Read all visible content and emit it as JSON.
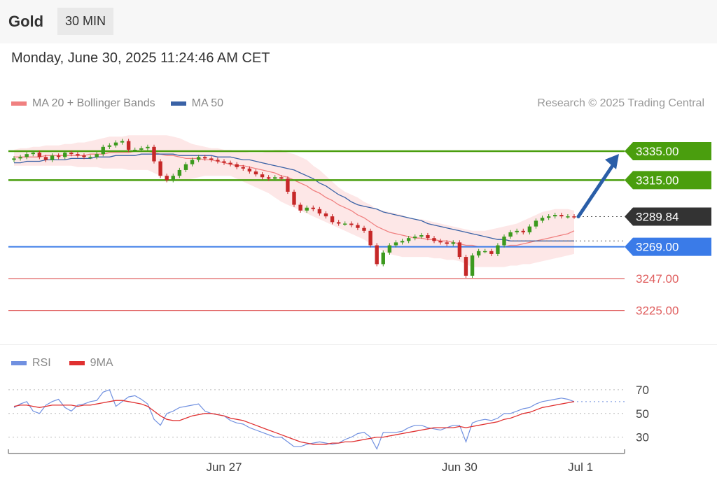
{
  "header": {
    "title": "Gold",
    "interval": "30 MIN"
  },
  "timestamp": "Monday, June 30, 2025 11:24:46 AM CET",
  "legend": {
    "ma20": "MA 20 + Bollinger Bands",
    "ma50": "MA 50"
  },
  "credit": "Research © 2025 Trading Central",
  "rsi_legend": {
    "rsi": "RSI",
    "ma": "9MA"
  },
  "colors": {
    "resistance": "#4a9e0e",
    "support": "#3a7be8",
    "minor_support": "#e06060",
    "last": "#333333",
    "up": "#3c9a1e",
    "down": "#c62828",
    "ma20": "#f08080",
    "ma50": "#3a62a6",
    "band": "#fde3e3",
    "rsi": "#7090e0",
    "rsi_ma": "#e03030",
    "arrow": "#2a5ea8"
  },
  "chart_data": [
    {
      "type": "candlestick",
      "title": "Gold",
      "interval": "30 MIN",
      "ylim": [
        3205,
        3350
      ],
      "x_labels": [
        {
          "label": "Jun 27",
          "index": 33
        },
        {
          "label": "Jun 30",
          "index": 70
        },
        {
          "label": "Jul 1",
          "index": 89
        }
      ],
      "levels": [
        {
          "label": "3335.00",
          "value": 3335.0,
          "kind": "resistance"
        },
        {
          "label": "3315.00",
          "value": 3315.0,
          "kind": "resistance"
        },
        {
          "label": "3289.84",
          "value": 3289.84,
          "kind": "last"
        },
        {
          "label": "3269.00",
          "value": 3269.0,
          "kind": "support"
        },
        {
          "label": "3247.00",
          "value": 3247.0,
          "kind": "minor_support"
        },
        {
          "label": "3225.00",
          "value": 3225.0,
          "kind": "minor_support"
        }
      ],
      "close": [
        3330,
        3331,
        3333,
        3334,
        3331,
        3329,
        3332,
        3331,
        3334,
        3333,
        3332,
        3331,
        3331,
        3333,
        3338,
        3339,
        3341,
        3342,
        3336,
        3336,
        3337,
        3338,
        3328,
        3318,
        3315,
        3318,
        3322,
        3326,
        3329,
        3331,
        3330,
        3329,
        3328,
        3327,
        3326,
        3324,
        3323,
        3321,
        3319,
        3317,
        3316,
        3317,
        3316,
        3307,
        3298,
        3294,
        3296,
        3295,
        3292,
        3290,
        3286,
        3285,
        3285,
        3284,
        3282,
        3280,
        3270,
        3257,
        3265,
        3270,
        3272,
        3273,
        3275,
        3276,
        3277,
        3275,
        3273,
        3272,
        3271,
        3272,
        3262,
        3249,
        3263,
        3266,
        3266,
        3264,
        3270,
        3276,
        3279,
        3280,
        3279,
        3283,
        3287,
        3289,
        3290,
        3291,
        3290,
        3290,
        3289.84
      ],
      "ma20": [
        3331,
        3331,
        3331,
        3331,
        3331,
        3332,
        3332,
        3332,
        3332,
        3332,
        3332,
        3332,
        3333,
        3333,
        3333,
        3334,
        3334,
        3334,
        3334,
        3335,
        3335,
        3335,
        3334,
        3333,
        3332,
        3332,
        3331,
        3330,
        3330,
        3330,
        3329,
        3329,
        3328,
        3327,
        3326,
        3325,
        3325,
        3324,
        3323,
        3322,
        3321,
        3320,
        3318,
        3317,
        3315,
        3313,
        3311,
        3308,
        3306,
        3303,
        3301,
        3298,
        3296,
        3294,
        3291,
        3289,
        3286,
        3283,
        3281,
        3279,
        3278,
        3277,
        3276,
        3275,
        3275,
        3274,
        3274,
        3273,
        3273,
        3272,
        3271,
        3270,
        3270,
        3269,
        3269,
        3269,
        3269,
        3269,
        3270,
        3270,
        3271,
        3272,
        3273,
        3274,
        3275,
        3276,
        3277,
        3278,
        3280
      ],
      "bb_upper": [
        3336,
        3337,
        3337,
        3338,
        3338,
        3339,
        3339,
        3339,
        3340,
        3340,
        3341,
        3341,
        3342,
        3343,
        3344,
        3345,
        3345,
        3345,
        3346,
        3346,
        3346,
        3346,
        3346,
        3346,
        3346,
        3345,
        3344,
        3342,
        3340,
        3339,
        3338,
        3337,
        3337,
        3336,
        3336,
        3335,
        3335,
        3334,
        3334,
        3334,
        3335,
        3336,
        3336,
        3334,
        3333,
        3331,
        3329,
        3325,
        3322,
        3318,
        3314,
        3310,
        3307,
        3305,
        3303,
        3300,
        3298,
        3295,
        3294,
        3293,
        3292,
        3291,
        3289,
        3288,
        3288,
        3287,
        3286,
        3285,
        3284,
        3283,
        3282,
        3281,
        3280,
        3280,
        3280,
        3281,
        3282,
        3283,
        3284,
        3285,
        3287,
        3289,
        3291,
        3293,
        3294,
        3295,
        3295,
        3295,
        3294
      ],
      "bb_lower": [
        3325,
        3325,
        3325,
        3325,
        3325,
        3325,
        3325,
        3325,
        3325,
        3325,
        3324,
        3324,
        3324,
        3324,
        3323,
        3323,
        3323,
        3323,
        3322,
        3322,
        3322,
        3322,
        3320,
        3318,
        3317,
        3316,
        3315,
        3315,
        3316,
        3317,
        3318,
        3318,
        3318,
        3318,
        3318,
        3316,
        3314,
        3312,
        3310,
        3308,
        3306,
        3303,
        3300,
        3298,
        3296,
        3294,
        3292,
        3290,
        3288,
        3286,
        3284,
        3282,
        3280,
        3278,
        3276,
        3274,
        3271,
        3268,
        3266,
        3264,
        3263,
        3262,
        3262,
        3262,
        3262,
        3262,
        3261,
        3261,
        3260,
        3260,
        3259,
        3257,
        3255,
        3255,
        3255,
        3255,
        3255,
        3255,
        3256,
        3256,
        3257,
        3257,
        3258,
        3259,
        3260,
        3261,
        3262,
        3263,
        3264
      ],
      "ma50": [
        3327,
        3327,
        3328,
        3328,
        3328,
        3329,
        3329,
        3329,
        3329,
        3330,
        3330,
        3330,
        3330,
        3331,
        3331,
        3331,
        3332,
        3332,
        3332,
        3332,
        3333,
        3333,
        3333,
        3333,
        3333,
        3333,
        3332,
        3332,
        3332,
        3332,
        3332,
        3332,
        3331,
        3331,
        3331,
        3330,
        3329,
        3329,
        3328,
        3327,
        3326,
        3325,
        3324,
        3323,
        3322,
        3320,
        3318,
        3316,
        3313,
        3311,
        3308,
        3305,
        3303,
        3300,
        3298,
        3297,
        3296,
        3295,
        3293,
        3292,
        3291,
        3290,
        3289,
        3288,
        3287,
        3285,
        3284,
        3283,
        3282,
        3281,
        3280,
        3279,
        3278,
        3277,
        3276,
        3275,
        3274,
        3274,
        3273,
        3273,
        3273,
        3273,
        3273,
        3273,
        3273,
        3273,
        3273,
        3273,
        3273
      ]
    },
    {
      "type": "line",
      "title": "RSI",
      "ylim": [
        15,
        80
      ],
      "y_ticks": [
        70,
        50,
        30
      ],
      "rsi": [
        55,
        58,
        60,
        52,
        50,
        57,
        60,
        62,
        55,
        52,
        57,
        58,
        60,
        61,
        68,
        70,
        56,
        60,
        64,
        65,
        62,
        58,
        45,
        40,
        50,
        52,
        55,
        56,
        57,
        58,
        52,
        50,
        49,
        48,
        44,
        42,
        41,
        38,
        36,
        34,
        32,
        30,
        30,
        26,
        22,
        22,
        24,
        25,
        26,
        25,
        24,
        25,
        28,
        30,
        33,
        34,
        30,
        20,
        34,
        34,
        34,
        35,
        38,
        40,
        40,
        38,
        37,
        36,
        38,
        40,
        40,
        26,
        42,
        44,
        45,
        44,
        46,
        50,
        50,
        52,
        54,
        55,
        58,
        60,
        61,
        62,
        63,
        62,
        60
      ],
      "ma9": [
        56,
        57,
        57,
        56,
        55,
        56,
        57,
        57,
        57,
        57,
        56,
        57,
        57,
        58,
        59,
        60,
        61,
        61,
        60,
        59,
        58,
        56,
        52,
        48,
        45,
        44,
        44,
        46,
        48,
        49,
        50,
        50,
        49,
        48,
        46,
        45,
        44,
        42,
        40,
        38,
        36,
        34,
        32,
        30,
        28,
        26,
        25,
        24,
        24,
        24,
        25,
        25,
        26,
        26,
        27,
        28,
        29,
        30,
        30,
        31,
        32,
        33,
        34,
        35,
        36,
        37,
        38,
        38,
        38,
        38,
        39,
        38,
        39,
        40,
        41,
        42,
        43,
        45,
        46,
        48,
        50,
        51,
        53,
        55,
        56,
        57,
        58,
        59,
        60
      ]
    }
  ]
}
